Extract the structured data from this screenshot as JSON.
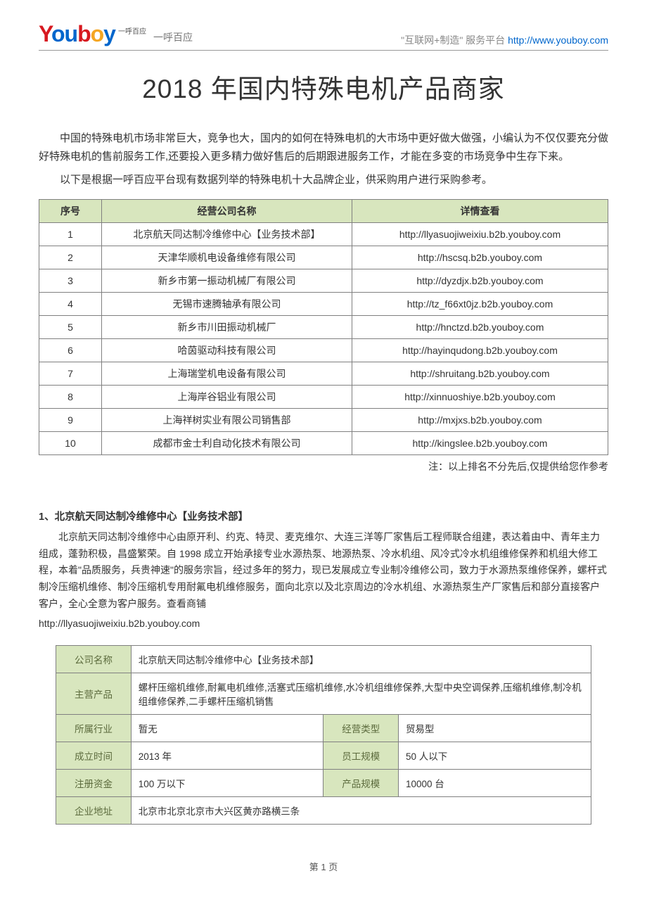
{
  "header": {
    "logo_tagline": "一呼百应",
    "logo_sup": "一呼百应",
    "right_text": "\"互联网+制造\" 服务平台  ",
    "right_url": "http://www.youboy.com"
  },
  "title": "2018 年国内特殊电机产品商家",
  "intro_p1": "中国的特殊电机市场非常巨大，竞争也大，国内的如何在特殊电机的大市场中更好做大做强，小编认为不仅仅要充分做好特殊电机的售前服务工作,还要投入更多精力做好售后的后期跟进服务工作，才能在多变的市场竞争中生存下来。",
  "intro_p2": "以下是根据一呼百应平台现有数据列举的特殊电机十大品牌企业，供采购用户进行采购参考。",
  "ranking": {
    "columns": [
      "序号",
      "经营公司名称",
      "详情查看"
    ],
    "rows": [
      [
        "1",
        "北京航天同达制冷维修中心【业务技术部】",
        "http://llyasuojiweixiu.b2b.youboy.com"
      ],
      [
        "2",
        "天津华顺机电设备维修有限公司",
        "http://hscsq.b2b.youboy.com"
      ],
      [
        "3",
        "新乡市第一振动机械厂有限公司",
        "http://dyzdjx.b2b.youboy.com"
      ],
      [
        "4",
        "无锡市速腾轴承有限公司",
        "http://tz_f66xt0jz.b2b.youboy.com"
      ],
      [
        "5",
        "新乡市川田振动机械厂",
        "http://hnctzd.b2b.youboy.com"
      ],
      [
        "6",
        "哈茵驱动科技有限公司",
        "http://hayinqudong.b2b.youboy.com"
      ],
      [
        "7",
        "上海瑞堂机电设备有限公司",
        "http://shruitang.b2b.youboy.com"
      ],
      [
        "8",
        "上海岸谷铝业有限公司",
        "http://xinnuoshiye.b2b.youboy.com"
      ],
      [
        "9",
        "上海祥树实业有限公司销售部",
        "http://mxjxs.b2b.youboy.com"
      ],
      [
        "10",
        "成都市金士利自动化技术有限公司",
        "http://kingslee.b2b.youboy.com"
      ]
    ]
  },
  "note": "注：以上排名不分先后,仅提供给您作参考",
  "company1": {
    "heading": "1、北京航天同达制冷维修中心【业务技术部】",
    "body": "北京航天同达制冷维修中心由原开利、约克、特灵、麦克维尔、大连三洋等厂家售后工程师联合组建，表达着由中、青年主力组成，蓬勃积极，昌盛繁荣。自 1998 成立开始承接专业水源热泵、地源热泵、冷水机组、风冷式冷水机组维修保养和机组大修工程，本着\"品质服务，兵贵神速\"的服务宗旨，经过多年的努力，现已发展成立专业制冷维修公司，致力于水源热泵维修保养，螺杆式制冷压缩机维修、制冷压缩机专用耐氟电机维修服务，面向北京以及北京周边的冷水机组、水源热泵生产厂家售后和部分直接客户客户，全心全意为客户服务。查看商铺",
    "url": "http://llyasuojiweixiu.b2b.youboy.com",
    "detail": {
      "labels": {
        "name": "公司名称",
        "products": "主营产品",
        "industry": "所属行业",
        "biztype": "经营类型",
        "founded": "成立时间",
        "staff": "员工规模",
        "capital": "注册资金",
        "prodscale": "产品规模",
        "address": "企业地址"
      },
      "values": {
        "name": "北京航天同达制冷维修中心【业务技术部】",
        "products": "螺杆压缩机维修,耐氟电机维修,活塞式压缩机维修,水冷机组维修保养,大型中央空调保养,压缩机维修,制冷机组维修保养,二手螺杆压缩机销售",
        "industry": "暂无",
        "biztype": "贸易型",
        "founded": "2013 年",
        "staff": "50 人以下",
        "capital": "100 万以下",
        "prodscale": "10000 台",
        "address": "北京市北京北京市大兴区黄亦路横三条"
      }
    }
  },
  "footer": "第 1 页",
  "colors": {
    "header_bg": "#d8e6be",
    "border": "#808080",
    "link": "#0066cc",
    "logo_red": "#d71920",
    "logo_orange": "#f5a623"
  }
}
